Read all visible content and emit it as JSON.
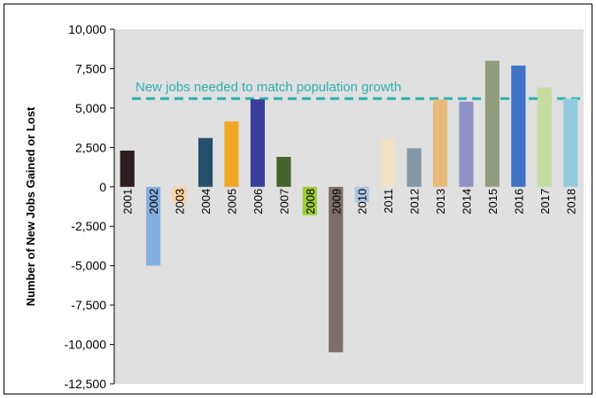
{
  "chart_data": {
    "type": "bar",
    "title": "",
    "xlabel": "",
    "ylabel": "Number of New Jobs Gained or Lost",
    "ylim": [
      -12500,
      10000
    ],
    "yticks": [
      10000,
      7500,
      5000,
      2500,
      0,
      -2500,
      -5000,
      -7500,
      -10000,
      -12500
    ],
    "ytick_labels": [
      "10,000",
      "7,500",
      "5,000",
      "2,500",
      "0",
      "-2,500",
      "-5,000",
      "-7,500",
      "-10,000",
      "-12,500"
    ],
    "grid": false,
    "categories": [
      "2001",
      "2002",
      "2003",
      "2004",
      "2005",
      "2006",
      "2007",
      "2008",
      "2009",
      "2010",
      "2011",
      "2012",
      "2013",
      "2014",
      "2015",
      "2016",
      "2017",
      "2018"
    ],
    "values": [
      2300,
      -5000,
      -1000,
      3100,
      4150,
      5550,
      1900,
      -1800,
      -10500,
      -1000,
      3050,
      2450,
      5550,
      5400,
      8000,
      7700,
      6300,
      5600
    ],
    "bar_colors": [
      "#2d1d1f",
      "#85aee0",
      "#fbd3a6",
      "#254f6a",
      "#f0a726",
      "#3a3e9b",
      "#46632e",
      "#9dcb38",
      "#7e6e6b",
      "#afc6e4",
      "#f1e2c6",
      "#8397a6",
      "#e7b97a",
      "#8e92c7",
      "#919c7f",
      "#3f73c8",
      "#c4dca0",
      "#92cbe0"
    ],
    "reference_line": {
      "value": 5600,
      "label": "New jobs needed to match population growth",
      "color": "#2bb0ae"
    },
    "plot_background": "#e0e0e0"
  }
}
